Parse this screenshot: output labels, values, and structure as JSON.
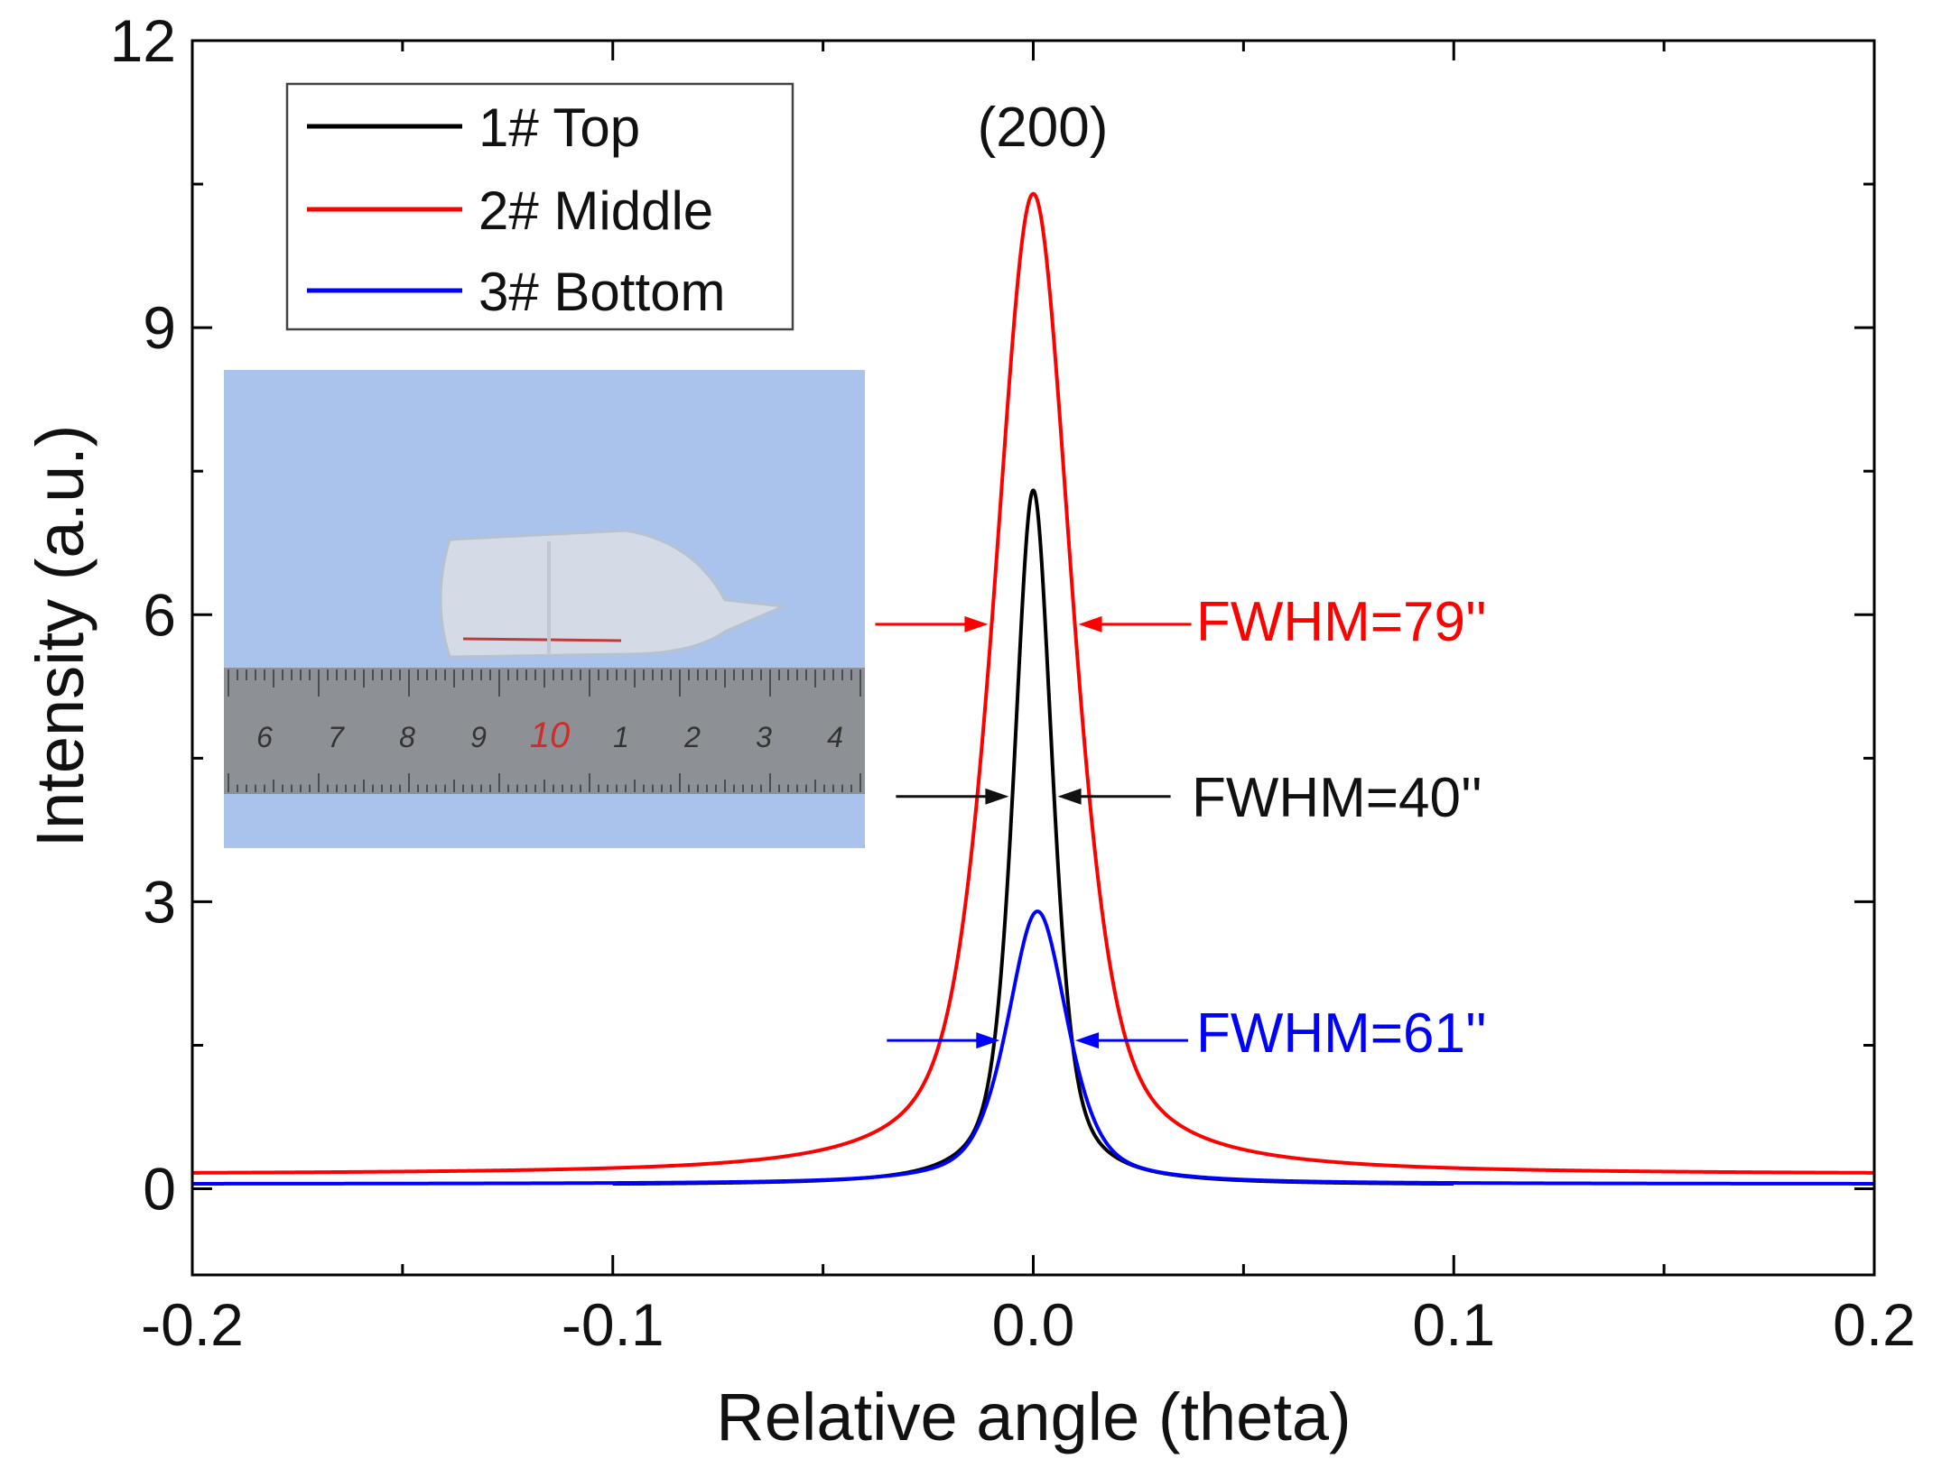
{
  "chart_data": {
    "type": "line",
    "title": "",
    "xlabel": "Relative angle (theta)",
    "ylabel": "Intensity (a.u.)",
    "xlim": [
      -0.2,
      0.2
    ],
    "ylim": [
      -0.9,
      12
    ],
    "xticks": [
      -0.2,
      -0.1,
      0.0,
      0.1,
      0.2
    ],
    "xtick_labels": [
      "-0.2",
      "-0.1",
      "0.0",
      "0.1",
      "0.2"
    ],
    "yticks": [
      0,
      3,
      6,
      9,
      12
    ],
    "ytick_labels": [
      "0",
      "3",
      "6",
      "9",
      "12"
    ],
    "legend_position": "top-left",
    "series": [
      {
        "name": "1# Top",
        "color": "#000000",
        "x_range": [
          -0.1,
          0.1
        ],
        "baseline": 0.04,
        "peak_center": 0.0,
        "peak_height": 7.3,
        "fwhm": 0.011
      },
      {
        "name": "2# Middle",
        "color": "#ff0000",
        "x_range": [
          -0.2,
          0.2
        ],
        "baseline": 0.15,
        "peak_center": 0.0,
        "peak_height": 10.4,
        "fwhm": 0.022
      },
      {
        "name": "3# Bottom",
        "color": "#0000ff",
        "x_range": [
          -0.2,
          0.2
        ],
        "baseline": 0.05,
        "peak_center": 0.001,
        "peak_height": 2.9,
        "fwhm": 0.017
      }
    ],
    "annotations": [
      {
        "text": "(200)",
        "color": "#111111"
      },
      {
        "text": "FWHM=79''",
        "color": "#ff0000",
        "series": "2# Middle",
        "level": 5.9
      },
      {
        "text": "FWHM=40''",
        "color": "#111111",
        "series": "1# Top",
        "level": 4.1
      },
      {
        "text": "FWHM=61''",
        "color": "#0000ff",
        "series": "3# Bottom",
        "level": 1.55
      }
    ]
  },
  "inset_photo": {
    "description_icon": "crystal-photo-icon",
    "ruler_labels": [
      "6",
      "7",
      "8",
      "9",
      "10",
      "1",
      "2",
      "3",
      "4"
    ],
    "colors": {
      "background": "#a9c3ec",
      "ruler": "#8d9094",
      "highlight_number": "#d42a2a"
    }
  }
}
